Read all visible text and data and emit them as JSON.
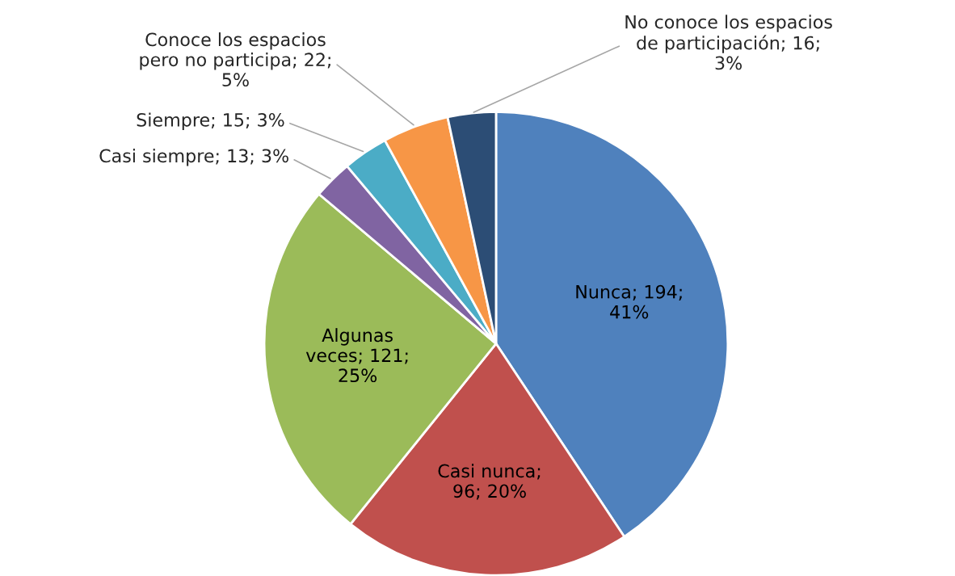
{
  "chart_data": {
    "type": "pie",
    "categories": [
      "Nunca",
      "Casi nunca",
      "Algunas veces",
      "Casi siempre",
      "Siempre",
      "Conoce los espacios pero no participa",
      "No conoce los espacios de participación"
    ],
    "values": [
      194,
      96,
      121,
      13,
      15,
      22,
      16
    ],
    "value_labels": [
      "; 194; 41%",
      "; 96; 20%",
      "; 121; 25%",
      "; 13; 3%",
      "; 15; 3%",
      "; 22; 5%",
      "; 16; 3%"
    ],
    "colors": [
      "#4f81bd",
      "#c0504d",
      "#9bbb59",
      "#8064a2",
      "#4bacc6",
      "#f79646",
      "#2c4d75"
    ],
    "legend": false
  }
}
